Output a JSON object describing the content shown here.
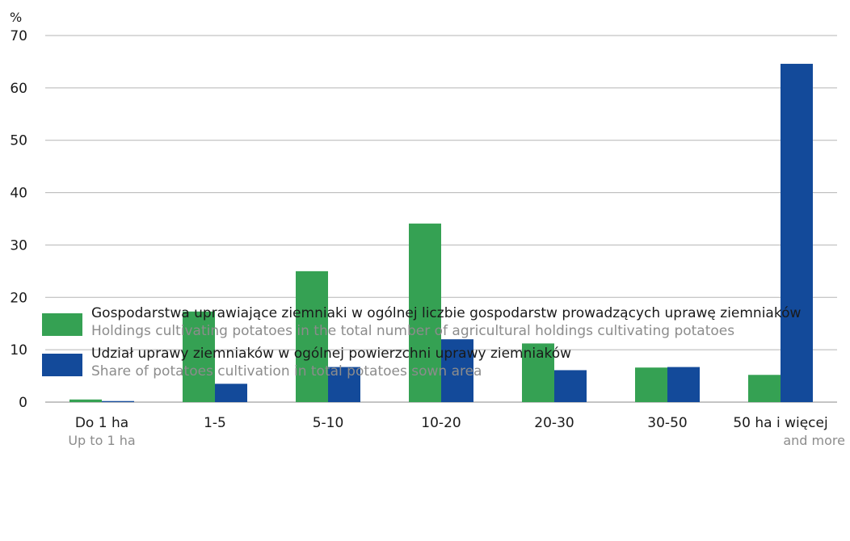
{
  "chart_data": {
    "type": "bar",
    "unit_label": "%",
    "ylim": [
      0,
      70
    ],
    "yticks": [
      0,
      10,
      20,
      30,
      40,
      50,
      60,
      70
    ],
    "grid": true,
    "categories": [
      {
        "label": "Do 1 ha",
        "sublabel": "Up to 1 ha"
      },
      {
        "label": "1-5",
        "sublabel": ""
      },
      {
        "label": "5-10",
        "sublabel": ""
      },
      {
        "label": "10-20",
        "sublabel": ""
      },
      {
        "label": "20-30",
        "sublabel": ""
      },
      {
        "label": "30-50",
        "sublabel": ""
      },
      {
        "label": "50 ha i więcej",
        "sublabel": "and more"
      }
    ],
    "series": [
      {
        "name": "Gospodarstwa uprawiające ziemniaki w ogólnej liczbie gospodarstw prowadzących uprawę ziemniaków",
        "name_en": "Holdings cultivating potatoes in the total number of agricultural holdings cultivating potatoes",
        "color": "#35a153",
        "values": [
          0.5,
          17.3,
          25.0,
          34.1,
          11.2,
          6.6,
          5.2
        ]
      },
      {
        "name": "Udział uprawy ziemniaków w ogólnej powierzchni uprawy ziemniaków",
        "name_en": "Share of potatoes cultivation in total potatoes sown area",
        "color": "#134a9a",
        "values": [
          0.2,
          3.5,
          6.7,
          12.0,
          6.1,
          6.7,
          64.6
        ]
      }
    ],
    "legend_position": "bottom-left"
  }
}
